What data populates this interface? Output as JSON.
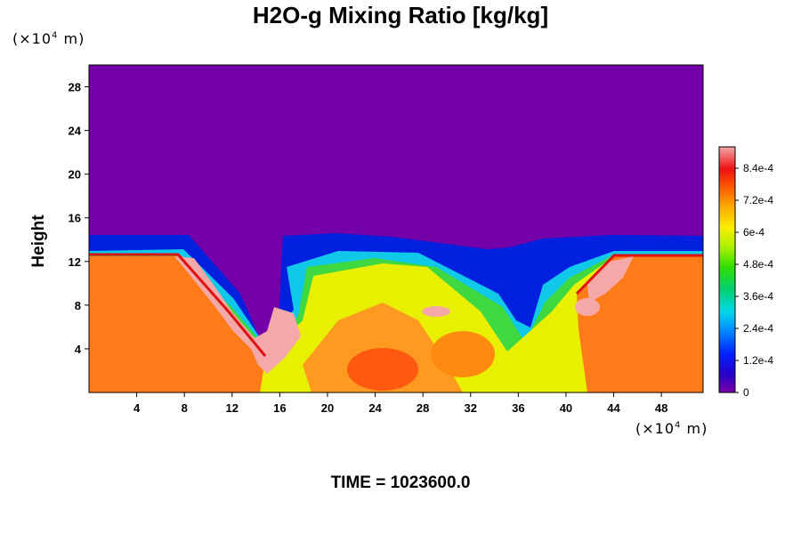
{
  "chart_data": {
    "type": "heatmap",
    "title": "H2O-g Mixing Ratio [kg/kg]",
    "ylabel": "Height",
    "xlabel": "",
    "x_unit": {
      "prefix": "(×10",
      "exp": "4",
      "suffix": " m)"
    },
    "y_unit": {
      "prefix": "(×10",
      "exp": "4",
      "suffix": " m)"
    },
    "xlim": [
      0,
      51.5
    ],
    "ylim": [
      0,
      30
    ],
    "x_ticks": [
      "4",
      "8",
      "12",
      "16",
      "20",
      "24",
      "28",
      "32",
      "36",
      "40",
      "44",
      "48"
    ],
    "y_ticks": [
      "4",
      "8",
      "12",
      "16",
      "20",
      "24",
      "28"
    ],
    "colorbar": {
      "min": 0,
      "max": 0.00092,
      "tick_labels": [
        "0",
        "1.2e-4",
        "2.4e-4",
        "3.6e-4",
        "4.8e-4",
        "6e-4",
        "7.2e-4",
        "8.4e-4"
      ],
      "tick_values": [
        0,
        0.00012,
        0.00024,
        0.00036,
        0.00048,
        0.0006,
        0.00072,
        0.00084
      ]
    },
    "field_description_values": {
      "background_upper_value": 0,
      "moist_layer_top_height": 13.5
    },
    "footer": "TIME = 1023600.0"
  },
  "colors": {
    "low": "#7300a8",
    "high": "#f2a0a0"
  }
}
